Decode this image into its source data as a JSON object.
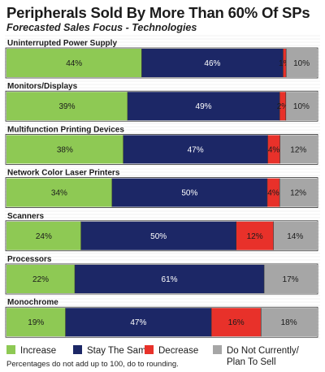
{
  "chart_data": {
    "type": "bar",
    "orientation": "horizontal",
    "stacked": true,
    "percent_stacked": true,
    "title": "Peripherals Sold By More Than 60% Of SPs",
    "subtitle": "Forecasted Sales Focus - Technologies",
    "categories": [
      "Uninterrupted Power Supply",
      "Monitors/Displays",
      "Multifunction Printing Devices",
      "Network Color Laser Printers",
      "Scanners",
      "Processors",
      "Monochrome"
    ],
    "series": [
      {
        "name": "Increase",
        "color": "#8ec954",
        "values": [
          44,
          39,
          38,
          34,
          24,
          22,
          19
        ]
      },
      {
        "name": "Stay The Same",
        "color": "#1c2766",
        "values": [
          46,
          49,
          47,
          50,
          50,
          61,
          47
        ]
      },
      {
        "name": "Decrease",
        "color": "#e8312a",
        "values": [
          1,
          2,
          4,
          4,
          12,
          0,
          16
        ]
      },
      {
        "name": "Do Not Currently/ Plan To Sell",
        "color": "#a6a6a6",
        "values": [
          10,
          10,
          12,
          12,
          14,
          17,
          18
        ]
      }
    ],
    "legend": {
      "position": "bottom",
      "items": [
        "Increase",
        "Stay The Same",
        "Decrease",
        "Do Not Currently/ Plan To Sell"
      ]
    },
    "grid": true,
    "footnote": "Percentages do not add up to 100, do to rounding."
  }
}
